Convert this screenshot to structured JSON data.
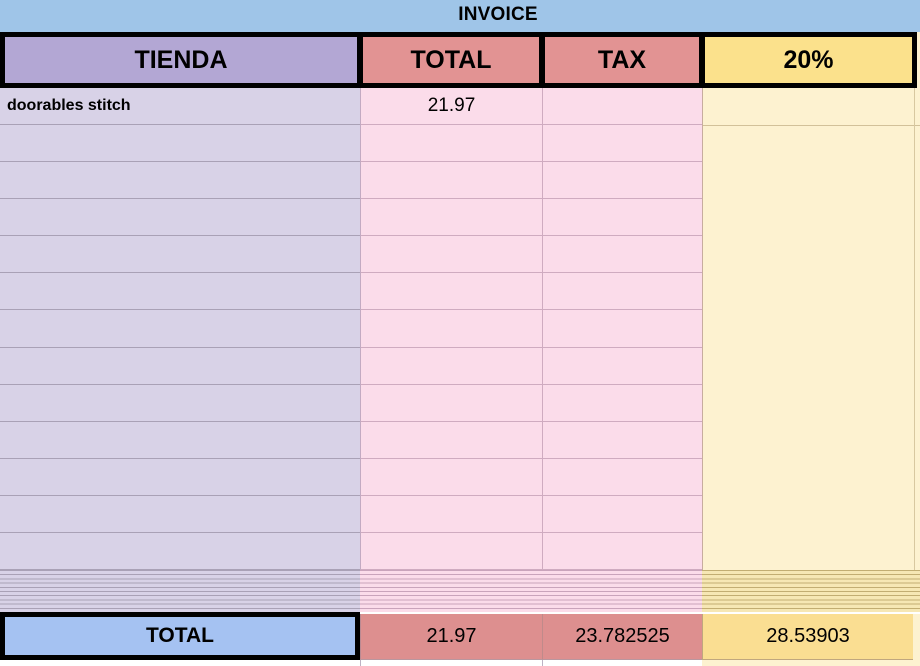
{
  "title": "INVOICE",
  "header": {
    "tienda": "TIENDA",
    "total": "TOTAL",
    "tax": "TAX",
    "pct": "20%"
  },
  "rows": [
    {
      "tienda": "doorables stitch",
      "total": "21.97",
      "tax": "",
      "pct": ""
    },
    {
      "tienda": "",
      "total": "",
      "tax": "",
      "pct": ""
    },
    {
      "tienda": "",
      "total": "",
      "tax": "",
      "pct": ""
    },
    {
      "tienda": "",
      "total": "",
      "tax": "",
      "pct": ""
    },
    {
      "tienda": "",
      "total": "",
      "tax": "",
      "pct": ""
    },
    {
      "tienda": "",
      "total": "",
      "tax": "",
      "pct": ""
    },
    {
      "tienda": "",
      "total": "",
      "tax": "",
      "pct": ""
    },
    {
      "tienda": "",
      "total": "",
      "tax": "",
      "pct": ""
    },
    {
      "tienda": "",
      "total": "",
      "tax": "",
      "pct": ""
    },
    {
      "tienda": "",
      "total": "",
      "tax": "",
      "pct": ""
    },
    {
      "tienda": "",
      "total": "",
      "tax": "",
      "pct": ""
    },
    {
      "tienda": "",
      "total": "",
      "tax": "",
      "pct": ""
    },
    {
      "tienda": "",
      "total": "",
      "tax": "",
      "pct": ""
    }
  ],
  "footer": {
    "label": "TOTAL",
    "total": "21.97",
    "tax": "23.782525",
    "pct": "28.53903"
  },
  "colors": {
    "topbar_blue": "#9fc5e8",
    "header_purple": "#b3a7d4",
    "header_salmon": "#e29393",
    "header_yellow": "#fbe18c",
    "data_lavender": "#d8d2e7",
    "data_pink": "#fbdcea",
    "data_yellow": "#fdf2d0",
    "footer_blue": "#a5c2f2",
    "footer_salmon": "#dd8f8f",
    "footer_yellow": "#fade92",
    "border_black": "#000000"
  }
}
